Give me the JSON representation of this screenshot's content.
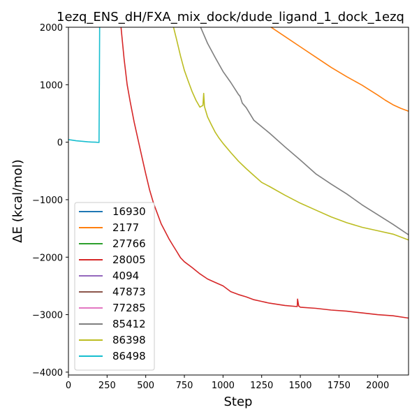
{
  "chart_data": {
    "type": "line",
    "title": "1ezq_ENS_dH/FXA_mix_dock/dude_ligand_1_dock_1ezq",
    "xlabel": "Step",
    "ylabel": "ΔE (kcal/mol)",
    "xlim": [
      0,
      2200
    ],
    "ylim": [
      -4050,
      2000
    ],
    "xticks": [
      0,
      250,
      500,
      750,
      1000,
      1250,
      1500,
      1750,
      2000
    ],
    "yticks": [
      -4000,
      -3000,
      -2000,
      -1000,
      0,
      1000,
      2000
    ],
    "xtick_labels": [
      "0",
      "250",
      "500",
      "750",
      "1000",
      "1250",
      "1500",
      "1750",
      "2000"
    ],
    "ytick_labels": [
      "−4000",
      "−3000",
      "−2000",
      "−1000",
      "0",
      "1000",
      "2000"
    ],
    "grid": false,
    "legend_position": "lower-left",
    "series": [
      {
        "name": "16930",
        "color": "#1f77b4",
        "x": [],
        "y": []
      },
      {
        "name": "2177",
        "color": "#ff7f0e",
        "x": [
          1300,
          1400,
          1500,
          1600,
          1700,
          1800,
          1900,
          2000,
          2050,
          2100,
          2150,
          2200
        ],
        "y": [
          2020,
          1840,
          1660,
          1480,
          1300,
          1140,
          990,
          820,
          730,
          650,
          590,
          540
        ]
      },
      {
        "name": "27766",
        "color": "#2ca02c",
        "x": [],
        "y": []
      },
      {
        "name": "28005",
        "color": "#d62728",
        "x": [
          340,
          360,
          380,
          400,
          425,
          450,
          475,
          500,
          525,
          550,
          575,
          600,
          625,
          650,
          675,
          700,
          725,
          750,
          800,
          850,
          900,
          950,
          1000,
          1050,
          1100,
          1150,
          1200,
          1250,
          1300,
          1400,
          1480,
          1482,
          1490,
          1500,
          1600,
          1700,
          1800,
          1900,
          2000,
          2100,
          2200
        ],
        "y": [
          2000,
          1450,
          1000,
          700,
          350,
          50,
          -250,
          -550,
          -830,
          -1060,
          -1240,
          -1420,
          -1550,
          -1680,
          -1790,
          -1900,
          -2010,
          -2080,
          -2180,
          -2290,
          -2380,
          -2440,
          -2500,
          -2600,
          -2650,
          -2690,
          -2740,
          -2770,
          -2800,
          -2840,
          -2860,
          -2730,
          -2850,
          -2870,
          -2890,
          -2920,
          -2940,
          -2970,
          -3000,
          -3020,
          -3060
        ]
      },
      {
        "name": "4094",
        "color": "#9467bd",
        "x": [],
        "y": []
      },
      {
        "name": "47873",
        "color": "#8c564b",
        "x": [],
        "y": []
      },
      {
        "name": "77285",
        "color": "#e377c2",
        "x": [],
        "y": []
      },
      {
        "name": "85412",
        "color": "#7f7f7f",
        "x": [
          855,
          900,
          950,
          1000,
          1050,
          1100,
          1110,
          1125,
          1150,
          1200,
          1250,
          1300,
          1400,
          1500,
          1600,
          1700,
          1800,
          1900,
          2000,
          2100,
          2200
        ],
        "y": [
          2000,
          1720,
          1470,
          1230,
          1040,
          830,
          800,
          680,
          600,
          380,
          270,
          160,
          -80,
          -310,
          -550,
          -730,
          -900,
          -1090,
          -1260,
          -1430,
          -1610
        ]
      },
      {
        "name": "86398",
        "color": "#bcbd22",
        "x": [
          680,
          700,
          725,
          750,
          775,
          800,
          825,
          850,
          870,
          875,
          880,
          900,
          925,
          950,
          975,
          1000,
          1050,
          1100,
          1150,
          1200,
          1250,
          1300,
          1400,
          1500,
          1600,
          1700,
          1800,
          1900,
          2000,
          2100,
          2200
        ],
        "y": [
          2000,
          1780,
          1500,
          1250,
          1060,
          880,
          730,
          610,
          640,
          850,
          620,
          440,
          300,
          170,
          70,
          -20,
          -180,
          -330,
          -460,
          -580,
          -700,
          -770,
          -920,
          -1060,
          -1180,
          -1300,
          -1400,
          -1480,
          -1540,
          -1600,
          -1700
        ]
      },
      {
        "name": "86498",
        "color": "#17becf",
        "x": [
          0,
          25,
          50,
          75,
          100,
          125,
          150,
          175,
          198,
          200,
          202
        ],
        "y": [
          45,
          35,
          25,
          18,
          12,
          7,
          3,
          0,
          -5,
          1000,
          2000
        ]
      }
    ]
  }
}
